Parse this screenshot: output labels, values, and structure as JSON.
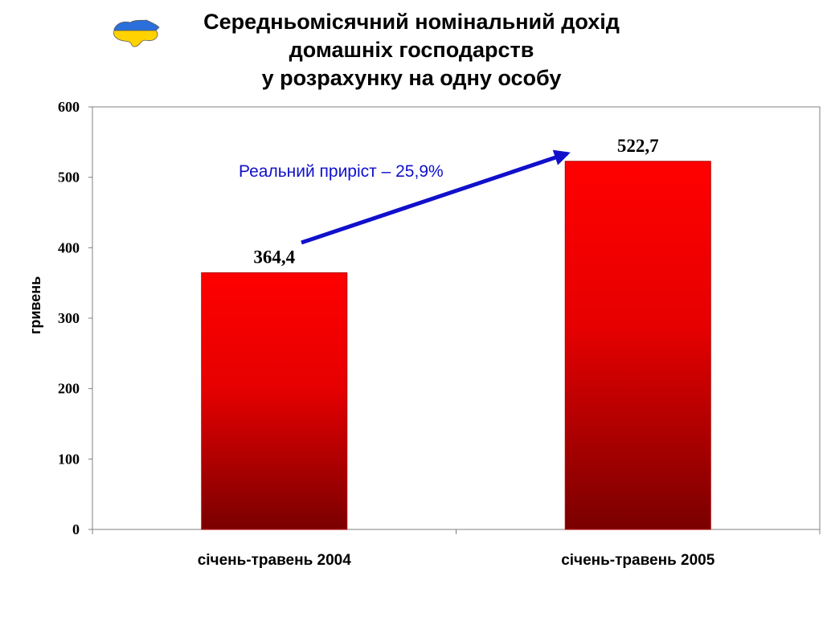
{
  "chart_data": {
    "type": "bar",
    "title_lines": [
      "Середньомісячний номінальний дохід",
      "домашніх господарств",
      "у розрахунку на одну особу"
    ],
    "categories": [
      "січень-травень 2004",
      "січень-травень 2005"
    ],
    "values": [
      364.4,
      522.7
    ],
    "data_labels": [
      "364,4",
      "522,7"
    ],
    "ylabel": "гривень",
    "xlabel": "",
    "ylim": [
      0,
      600
    ],
    "yticks": [
      0,
      100,
      200,
      300,
      400,
      500,
      600
    ],
    "grid": false,
    "legend": "none",
    "annotation": "Реальний приріст – 25,9%",
    "colors": {
      "bar_top": "#ff0000",
      "bar_bottom": "#7a0000",
      "bar_edge": "#b00000",
      "arrow": "#1010cc",
      "annotation": "#1010cc"
    }
  },
  "logo": {
    "icon": "ukraine-map-icon",
    "colors": [
      "#2a6fdb",
      "#ffd200"
    ]
  }
}
